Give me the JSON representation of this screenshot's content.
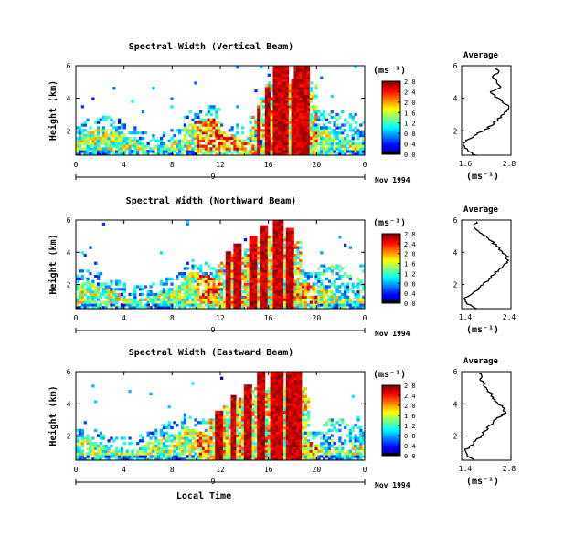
{
  "chart_data": [
    {
      "type": "heatmap",
      "title": "Spectral Width (Vertical Beam)",
      "ylabel": "Height (km)",
      "y_ticks": [
        "2",
        "4",
        "6"
      ],
      "ylim": [
        0.5,
        6
      ],
      "x_ticks": [
        "0",
        "4",
        "8",
        "12",
        "16",
        "20",
        "0"
      ],
      "xlim": [
        0,
        24
      ],
      "day_label": "9",
      "date_label": "Nov 1994",
      "colorbar": {
        "unit": "(ms⁻¹)",
        "ticks": [
          "0.0",
          "0.4",
          "0.8",
          "1.2",
          "1.6",
          "2.0",
          "2.4",
          "2.8"
        ],
        "range": [
          0,
          2.8
        ]
      },
      "average": {
        "title": "Average",
        "xlabel": "(ms⁻¹)",
        "x_ticks": [
          "1.6",
          "2.8"
        ],
        "xlim": [
          1.6,
          2.8
        ],
        "y_ticks": [
          "2",
          "4",
          "6"
        ],
        "ylim": [
          0.5,
          6
        ],
        "profile_height": [
          0.5,
          0.8,
          1.1,
          1.4,
          1.7,
          2.0,
          2.3,
          2.6,
          2.9,
          3.2,
          3.5,
          3.8,
          4.1,
          4.4,
          4.7,
          5.0,
          5.3,
          5.6,
          5.9
        ],
        "profile_value": [
          1.95,
          1.75,
          1.65,
          1.7,
          1.9,
          2.15,
          2.3,
          2.45,
          2.55,
          2.7,
          2.75,
          2.6,
          2.4,
          2.3,
          2.55,
          2.45,
          2.35,
          2.5,
          2.4
        ]
      }
    },
    {
      "type": "heatmap",
      "title": "Spectral Width (Northward Beam)",
      "ylabel": "Height (km)",
      "y_ticks": [
        "2",
        "4",
        "6"
      ],
      "ylim": [
        0.5,
        6
      ],
      "x_ticks": [
        "0",
        "4",
        "8",
        "12",
        "16",
        "20",
        "0"
      ],
      "xlim": [
        0,
        24
      ],
      "day_label": "9",
      "date_label": "Nov 1994",
      "colorbar": {
        "unit": "(ms⁻¹)",
        "ticks": [
          "0.0",
          "0.4",
          "0.8",
          "1.2",
          "1.6",
          "2.0",
          "2.4",
          "2.8"
        ],
        "range": [
          0,
          2.8
        ]
      },
      "average": {
        "title": "Average",
        "xlabel": "(ms⁻¹)",
        "x_ticks": [
          "1.4",
          "2.4"
        ],
        "xlim": [
          1.4,
          2.4
        ],
        "y_ticks": [
          "2",
          "4",
          "6"
        ],
        "ylim": [
          0.5,
          6
        ],
        "profile_height": [
          0.5,
          0.8,
          1.1,
          1.4,
          1.7,
          2.0,
          2.3,
          2.6,
          2.9,
          3.2,
          3.5,
          3.8,
          4.1,
          4.4,
          4.7,
          5.0,
          5.3,
          5.6,
          5.9
        ],
        "profile_value": [
          1.7,
          1.5,
          1.45,
          1.6,
          1.75,
          1.85,
          1.95,
          2.05,
          2.15,
          2.25,
          2.35,
          2.3,
          2.2,
          2.1,
          2.0,
          1.9,
          1.75,
          1.65,
          1.7
        ]
      }
    },
    {
      "type": "heatmap",
      "title": "Spectral Width (Eastward Beam)",
      "ylabel": "Height (km)",
      "y_ticks": [
        "2",
        "4",
        "6"
      ],
      "ylim": [
        0.5,
        6
      ],
      "x_ticks": [
        "0",
        "4",
        "8",
        "12",
        "16",
        "20",
        "0"
      ],
      "xlim": [
        0,
        24
      ],
      "day_label": "9",
      "xlabel": "Local Time",
      "date_label": "Nov 1994",
      "colorbar": {
        "unit": "(ms⁻¹)",
        "ticks": [
          "0.0",
          "0.4",
          "0.8",
          "1.2",
          "1.6",
          "2.0",
          "2.4",
          "2.8"
        ],
        "range": [
          0,
          2.8
        ]
      },
      "average": {
        "title": "Average",
        "xlabel": "(ms⁻¹)",
        "x_ticks": [
          "1.4",
          "2.8"
        ],
        "xlim": [
          1.4,
          2.8
        ],
        "y_ticks": [
          "2",
          "4",
          "6"
        ],
        "ylim": [
          0.5,
          6
        ],
        "profile_height": [
          0.5,
          0.8,
          1.1,
          1.4,
          1.7,
          2.0,
          2.3,
          2.6,
          2.9,
          3.2,
          3.5,
          3.8,
          4.1,
          4.4,
          4.7,
          5.0,
          5.3,
          5.6,
          5.9
        ],
        "profile_value": [
          1.75,
          1.55,
          1.5,
          1.65,
          1.8,
          1.95,
          2.05,
          2.15,
          2.3,
          2.5,
          2.65,
          2.55,
          2.4,
          2.3,
          2.2,
          2.1,
          2.0,
          1.95,
          1.9
        ]
      }
    }
  ]
}
